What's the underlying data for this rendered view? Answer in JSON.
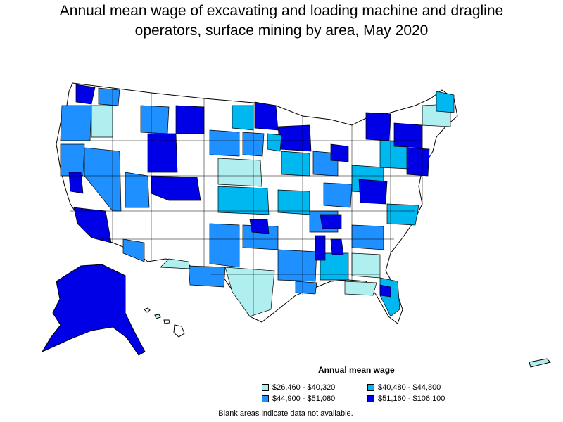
{
  "title_line1": "Annual mean wage of excavating and loading machine and dragline",
  "title_line2": "operators, surface mining by area, May 2020",
  "legend": {
    "title": "Annual mean wage",
    "items": [
      {
        "label": "$26,460 - $40,320",
        "color": "#b0efef"
      },
      {
        "label": "$40,480 - $44,800",
        "color": "#00b8f0"
      },
      {
        "label": "$44,900 - $51,080",
        "color": "#1e90ff"
      },
      {
        "label": "$51,160 - $106,100",
        "color": "#0000e6"
      }
    ]
  },
  "note": "Blank areas indicate data not available.",
  "colors": {
    "border": "#000000",
    "no_data": "#ffffff",
    "c1": "#b0efef",
    "c2": "#00b8f0",
    "c3": "#1e90ff",
    "c4": "#0000e6"
  }
}
